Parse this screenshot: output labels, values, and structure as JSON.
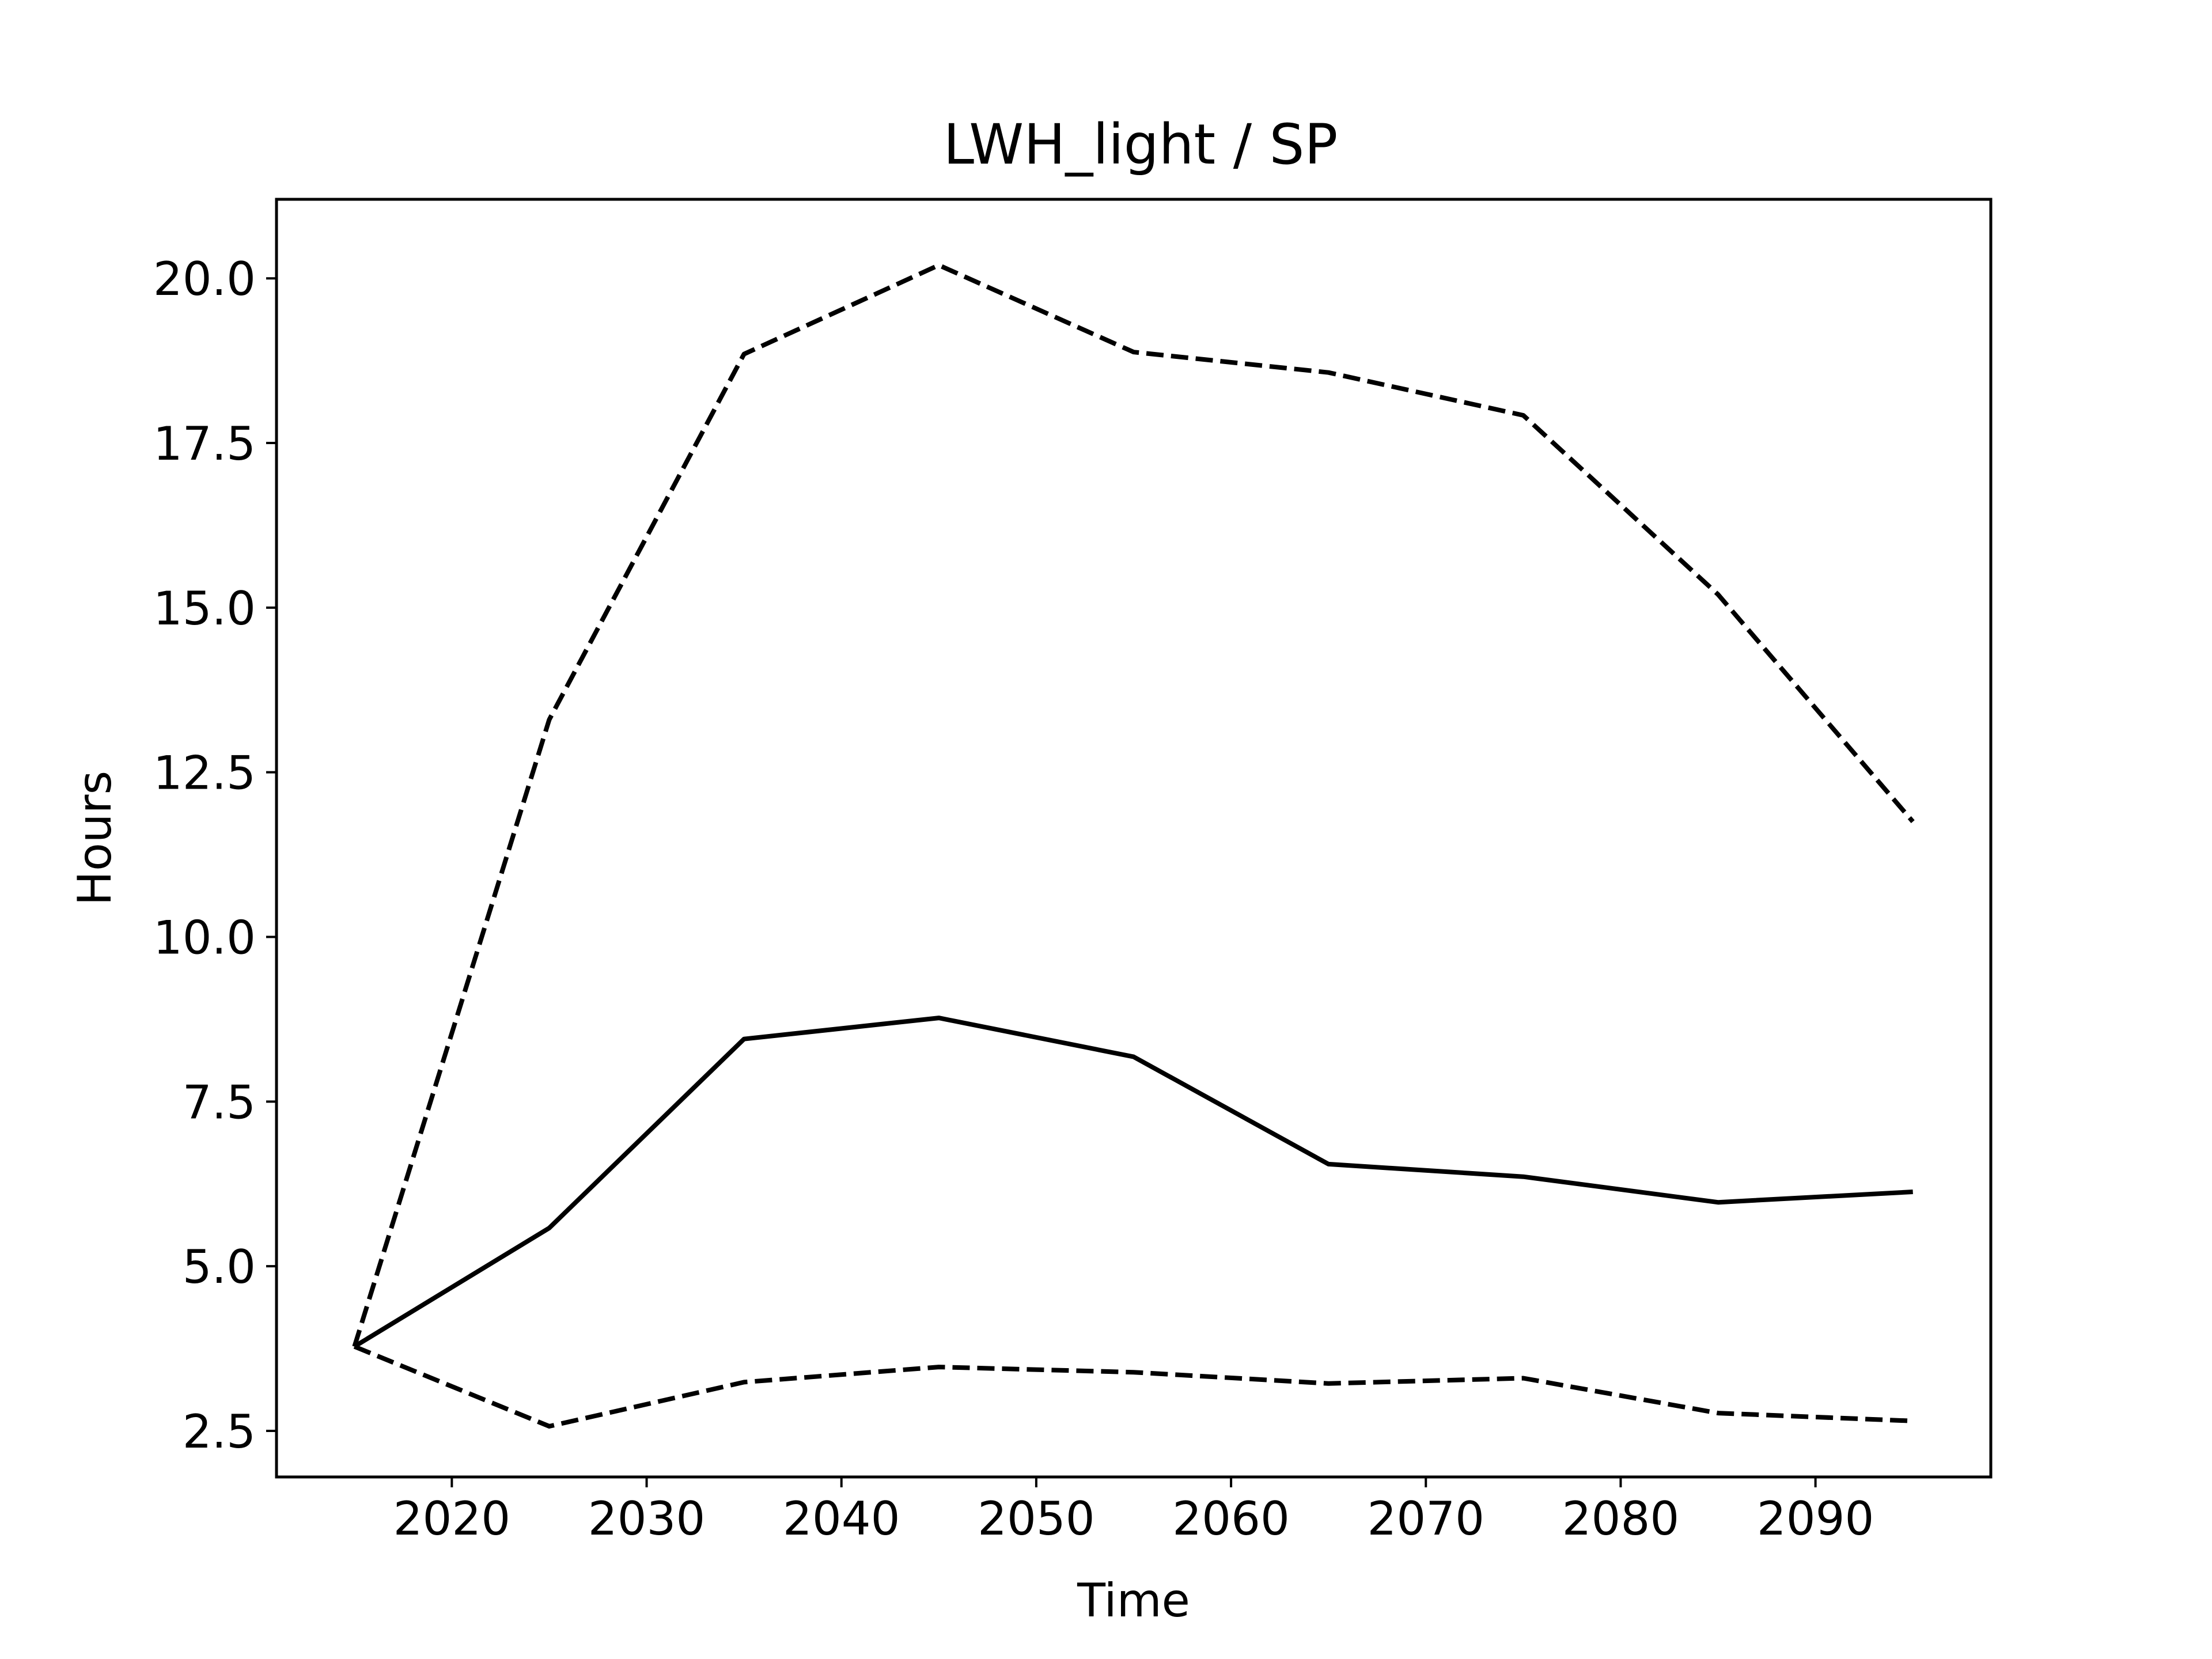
{
  "chart_data": {
    "type": "line",
    "title": "LWH_light / SP",
    "xlabel": "Time",
    "ylabel": "Hours",
    "x": [
      2015,
      2025,
      2035,
      2045,
      2055,
      2065,
      2075,
      2085,
      2095
    ],
    "xlim": [
      2011,
      2099
    ],
    "ylim": [
      1.8,
      21.2
    ],
    "xticks": [
      2020,
      2030,
      2040,
      2050,
      2060,
      2070,
      2080,
      2090
    ],
    "xtick_labels": [
      "2020",
      "2030",
      "2040",
      "2050",
      "2060",
      "2070",
      "2080",
      "2090"
    ],
    "yticks": [
      2.5,
      5.0,
      7.5,
      10.0,
      12.5,
      15.0,
      17.5,
      20.0
    ],
    "ytick_labels": [
      "2.5",
      "5.0",
      "7.5",
      "10.0",
      "12.5",
      "15.0",
      "17.5",
      "20.0"
    ],
    "grid": false,
    "legend": "none",
    "series": [
      {
        "values": [
          3.78,
          13.3,
          18.85,
          20.2,
          18.88,
          18.57,
          17.92,
          15.2,
          11.75
        ],
        "style": "dashed",
        "color": "#000000"
      },
      {
        "values": [
          3.78,
          5.58,
          8.45,
          8.77,
          8.18,
          6.55,
          6.36,
          5.97,
          6.13
        ],
        "style": "solid",
        "color": "#000000"
      },
      {
        "values": [
          3.78,
          2.57,
          3.24,
          3.47,
          3.39,
          3.22,
          3.3,
          2.77,
          2.65
        ],
        "style": "dashed",
        "color": "#000000"
      }
    ]
  }
}
